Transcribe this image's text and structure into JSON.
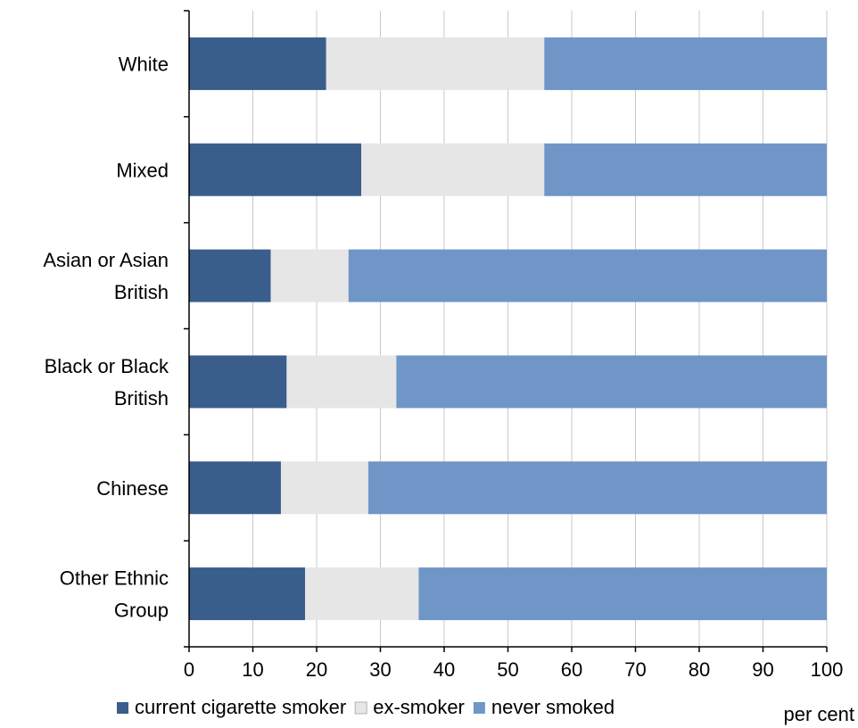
{
  "chart_data": {
    "type": "bar",
    "orientation": "horizontal",
    "stacked": true,
    "title": "",
    "xlabel": "",
    "ylabel": "",
    "x_unit": "per cent",
    "xlim": [
      0,
      100
    ],
    "x_ticks": [
      0,
      10,
      20,
      30,
      40,
      50,
      60,
      70,
      80,
      90,
      100
    ],
    "grid": true,
    "legend_position": "bottom",
    "categories": [
      [
        "White"
      ],
      [
        "Mixed"
      ],
      [
        "Asian or Asian",
        "British"
      ],
      [
        "Black or Black",
        "British"
      ],
      [
        "Chinese"
      ],
      [
        "Other Ethnic",
        "Group"
      ]
    ],
    "series": [
      {
        "name": "current cigarette smoker",
        "color": "#3a5e8c",
        "values": [
          21.5,
          27,
          12.8,
          15.3,
          14.4,
          18.2
        ]
      },
      {
        "name": "ex-smoker",
        "color": "#e6e6e6",
        "values": [
          34.2,
          28.7,
          12.2,
          17.2,
          13.7,
          17.8
        ]
      },
      {
        "name": "never smoked",
        "color": "#7096c8",
        "values": [
          44.3,
          44.3,
          75,
          67.5,
          71.9,
          64
        ]
      }
    ]
  }
}
